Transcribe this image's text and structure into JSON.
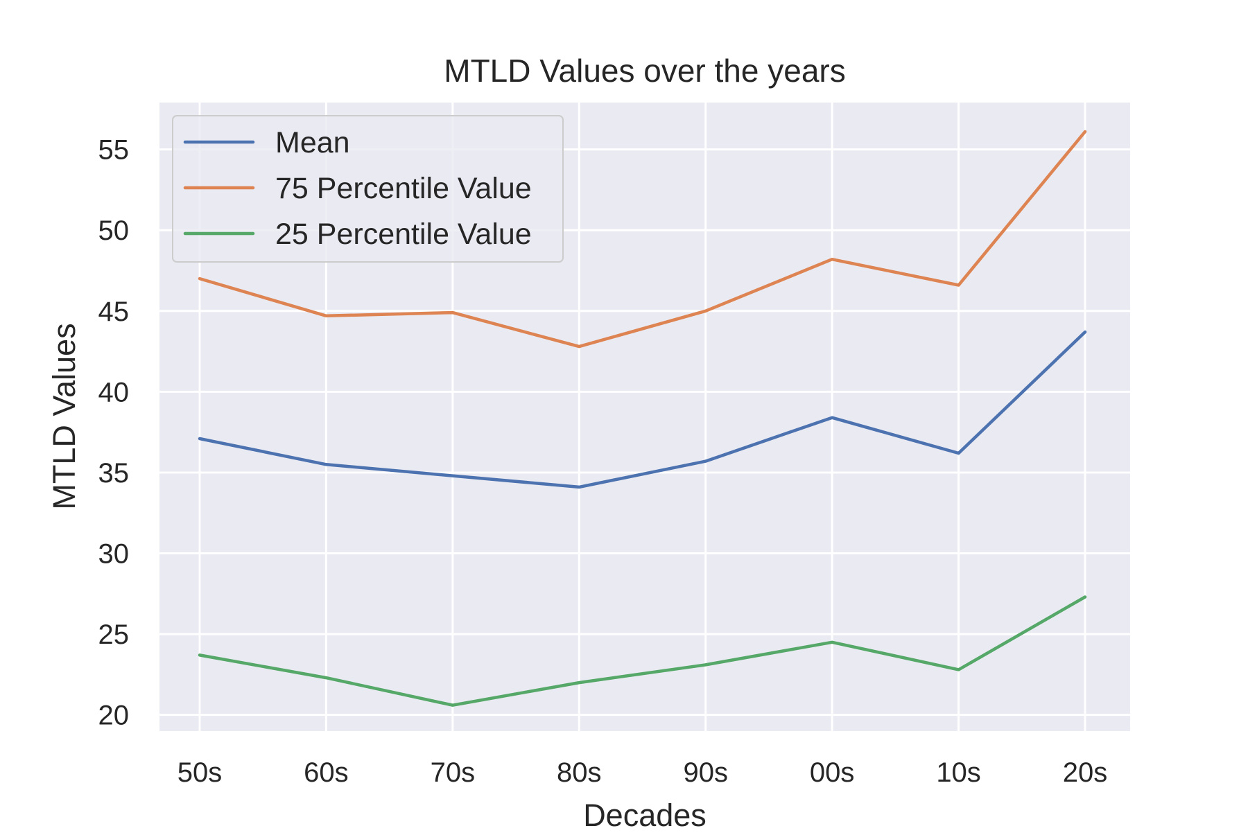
{
  "chart_data": {
    "type": "line",
    "title": "MTLD Values over the years",
    "xlabel": "Decades",
    "ylabel": "MTLD Values",
    "categories": [
      "50s",
      "60s",
      "70s",
      "80s",
      "90s",
      "00s",
      "10s",
      "20s"
    ],
    "ylim": [
      19,
      57.9
    ],
    "yticks": [
      20,
      25,
      30,
      35,
      40,
      45,
      50,
      55
    ],
    "grid": true,
    "legend_position": "upper-left",
    "series": [
      {
        "name": "Mean",
        "color": "#4c72b0",
        "values": [
          37.1,
          35.5,
          34.8,
          34.1,
          35.7,
          38.4,
          36.2,
          43.7
        ]
      },
      {
        "name": "75 Percentile Value",
        "color": "#dd8452",
        "values": [
          47.0,
          44.7,
          44.9,
          42.8,
          45.0,
          48.2,
          46.6,
          56.1
        ]
      },
      {
        "name": "25 Percentile Value",
        "color": "#55a868",
        "values": [
          23.7,
          22.3,
          20.6,
          22.0,
          23.1,
          24.5,
          22.8,
          27.3
        ]
      }
    ],
    "colors": {
      "plot_background": "#eaeaf2",
      "grid": "#ffffff",
      "text": "#262626"
    }
  }
}
